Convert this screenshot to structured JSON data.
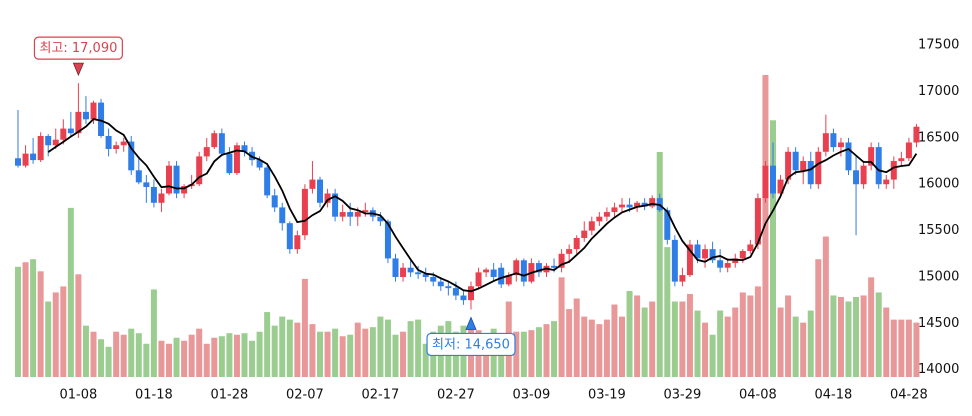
{
  "chart_data": {
    "type": "candlestick",
    "categories": [
      null,
      null,
      null,
      null,
      null,
      null,
      null,
      null,
      "01-08",
      null,
      null,
      null,
      null,
      null,
      null,
      null,
      null,
      null,
      "01-18",
      null,
      null,
      null,
      null,
      null,
      null,
      null,
      null,
      null,
      "01-28",
      null,
      null,
      null,
      null,
      null,
      null,
      null,
      null,
      null,
      "02-07",
      null,
      null,
      null,
      null,
      null,
      null,
      null,
      null,
      null,
      "02-17",
      null,
      null,
      null,
      null,
      null,
      null,
      null,
      null,
      null,
      "02-27",
      null,
      null,
      null,
      null,
      null,
      null,
      null,
      null,
      null,
      "03-09",
      null,
      null,
      null,
      null,
      null,
      null,
      null,
      null,
      null,
      "03-19",
      null,
      null,
      null,
      null,
      null,
      null,
      null,
      null,
      null,
      "03-29",
      null,
      null,
      null,
      null,
      null,
      null,
      null,
      null,
      null,
      "04-08",
      null,
      null,
      null,
      null,
      null,
      null,
      null,
      null,
      null,
      "04-18",
      null,
      null,
      null,
      null,
      null,
      null,
      null,
      null,
      null,
      "04-28",
      null
    ],
    "open": [
      16280,
      16200,
      16330,
      16260,
      16520,
      16420,
      16480,
      16600,
      16550,
      16780,
      16700,
      16880,
      16520,
      16380,
      16420,
      16460,
      16150,
      16020,
      15970,
      15800,
      15900,
      16200,
      15900,
      15980,
      16000,
      16300,
      16400,
      16550,
      16330,
      16120,
      16420,
      16350,
      16260,
      16180,
      15880,
      15750,
      15580,
      15300,
      15450,
      15950,
      16050,
      15800,
      15900,
      15650,
      15700,
      15650,
      15700,
      15720,
      15650,
      15600,
      15200,
      15000,
      15100,
      15050,
      15030,
      15000,
      14950,
      14900,
      14880,
      14800,
      14750,
      14900,
      15050,
      15080,
      15100,
      14920,
      15020,
      15180,
      14950,
      15150,
      15050,
      15120,
      15100,
      15250,
      15300,
      15420,
      15500,
      15600,
      15650,
      15700,
      15750,
      15780,
      15750,
      15800,
      15760,
      15850,
      15720,
      15400,
      14950,
      15020,
      15350,
      15200,
      15300,
      15180,
      15100,
      15150,
      15200,
      15280,
      15350,
      15850,
      16200,
      15900,
      16050,
      16350,
      16150,
      16250,
      16000,
      16350,
      16550,
      16400,
      16450,
      16150,
      16000,
      16200,
      16400,
      16000,
      16050,
      16250,
      16280,
      16450
    ],
    "high": [
      16800,
      16420,
      16500,
      16560,
      16540,
      16600,
      16700,
      16780,
      17090,
      16950,
      16900,
      16920,
      16600,
      16460,
      16500,
      16520,
      16300,
      16100,
      16050,
      15950,
      16250,
      16250,
      16000,
      16100,
      16350,
      16500,
      16580,
      16600,
      16400,
      16450,
      16460,
      16400,
      16300,
      16200,
      15950,
      15800,
      15600,
      15500,
      16000,
      16250,
      16080,
      15950,
      15950,
      15780,
      15800,
      15750,
      15800,
      15750,
      15700,
      15620,
      15250,
      15150,
      15200,
      15120,
      15100,
      15050,
      15000,
      14950,
      14950,
      14850,
      14950,
      15100,
      15100,
      15150,
      15150,
      15050,
      15200,
      15200,
      15200,
      15180,
      15150,
      15200,
      15300,
      15350,
      15450,
      15600,
      15650,
      15700,
      15750,
      15800,
      15850,
      15850,
      15820,
      15850,
      15880,
      15900,
      15750,
      15450,
      15100,
      15400,
      15400,
      15350,
      15380,
      15300,
      15200,
      15250,
      15300,
      15400,
      15900,
      16250,
      16450,
      16100,
      16400,
      16400,
      16300,
      16350,
      16400,
      16750,
      16600,
      16500,
      16500,
      16300,
      16250,
      16450,
      16450,
      16100,
      16300,
      16350,
      16500,
      16650
    ],
    "low": [
      16180,
      16180,
      16220,
      16240,
      16300,
      16380,
      16430,
      16520,
      16500,
      16650,
      16650,
      16500,
      16300,
      16330,
      16350,
      16100,
      16000,
      15800,
      15750,
      15700,
      15880,
      15850,
      15850,
      15950,
      15980,
      16250,
      16380,
      16300,
      16100,
      16100,
      16300,
      16200,
      16150,
      15850,
      15700,
      15500,
      15250,
      15250,
      15400,
      15900,
      15750,
      15750,
      15600,
      15600,
      15550,
      15550,
      15650,
      15600,
      15550,
      15150,
      14950,
      14950,
      15000,
      14980,
      14950,
      14900,
      14850,
      14800,
      14750,
      14700,
      14650,
      14880,
      15000,
      14950,
      14880,
      14900,
      14950,
      14900,
      14930,
      15000,
      15000,
      15050,
      15050,
      15150,
      15250,
      15380,
      15450,
      15550,
      15600,
      15650,
      15700,
      15700,
      15700,
      15720,
      15740,
      15700,
      15350,
      14900,
      14900,
      15000,
      15150,
      15100,
      15150,
      15050,
      15050,
      15100,
      15150,
      15250,
      15300,
      15800,
      15850,
      15850,
      16000,
      16100,
      16000,
      15950,
      15950,
      16300,
      16350,
      16300,
      16100,
      15450,
      15950,
      16150,
      15950,
      15950,
      15950,
      16200,
      16250,
      16400
    ],
    "close": [
      16200,
      16330,
      16260,
      16520,
      16420,
      16480,
      16600,
      16550,
      16780,
      16700,
      16880,
      16520,
      16380,
      16420,
      16460,
      16150,
      16020,
      15970,
      15800,
      15900,
      16200,
      15900,
      15980,
      16000,
      16300,
      16400,
      16550,
      16330,
      16120,
      16420,
      16350,
      16260,
      16180,
      15880,
      15750,
      15580,
      15300,
      15450,
      15950,
      16050,
      15800,
      15900,
      15650,
      15700,
      15650,
      15700,
      15720,
      15650,
      15600,
      15200,
      15000,
      15100,
      15050,
      15030,
      15000,
      14950,
      14900,
      14880,
      14800,
      14750,
      14900,
      15050,
      15080,
      15000,
      14920,
      15020,
      15180,
      14950,
      15150,
      15050,
      15120,
      15100,
      15250,
      15300,
      15420,
      15500,
      15600,
      15650,
      15700,
      15750,
      15780,
      15750,
      15800,
      15760,
      15850,
      15720,
      15400,
      14950,
      15020,
      15350,
      15200,
      15300,
      15180,
      15100,
      15150,
      15200,
      15280,
      15350,
      15850,
      16200,
      15900,
      16050,
      16350,
      16150,
      16250,
      16000,
      16350,
      16550,
      16400,
      16450,
      16150,
      16000,
      16200,
      16400,
      16000,
      16050,
      16250,
      16280,
      16450,
      16620
    ],
    "volume": [
      365,
      380,
      390,
      350,
      250,
      280,
      300,
      560,
      340,
      170,
      150,
      125,
      100,
      150,
      140,
      160,
      145,
      110,
      290,
      120,
      110,
      130,
      120,
      140,
      160,
      110,
      130,
      135,
      145,
      140,
      145,
      120,
      150,
      215,
      170,
      200,
      190,
      180,
      325,
      175,
      150,
      150,
      160,
      135,
      140,
      180,
      160,
      165,
      200,
      190,
      140,
      150,
      185,
      190,
      110,
      150,
      170,
      185,
      150,
      170,
      160,
      155,
      135,
      160,
      140,
      250,
      150,
      150,
      155,
      165,
      175,
      185,
      330,
      225,
      260,
      200,
      190,
      175,
      190,
      240,
      200,
      285,
      270,
      230,
      250,
      745,
      430,
      250,
      250,
      275,
      220,
      180,
      140,
      220,
      200,
      230,
      280,
      270,
      300,
      1000,
      850,
      230,
      270,
      200,
      180,
      220,
      390,
      465,
      270,
      265,
      250,
      265,
      270,
      330,
      280,
      230,
      190,
      190,
      190,
      180
    ],
    "ma": [
      null,
      null,
      null,
      null,
      16346,
      16402,
      16456,
      16514,
      16566,
      16622,
      16702,
      16686,
      16652,
      16580,
      16532,
      16386,
      16286,
      16204,
      16080,
      15968,
      15978,
      15954,
      15956,
      15996,
      16076,
      16116,
      16246,
      16316,
      16340,
      16364,
      16354,
      16296,
      16266,
      16218,
      16084,
      15930,
      15738,
      15592,
      15606,
      15666,
      15710,
      15830,
      15870,
      15820,
      15740,
      15720,
      15684,
      15684,
      15664,
      15574,
      15434,
      15310,
      15190,
      15076,
      15036,
      15026,
      14986,
      14952,
      14906,
      14856,
      14846,
      14876,
      14916,
      14956,
      14990,
      15014,
      15040,
      15014,
      15044,
      15070,
      15090,
      15074,
      15134,
      15164,
      15238,
      15314,
      15414,
      15494,
      15574,
      15640,
      15696,
      15726,
      15756,
      15768,
      15788,
      15776,
      15706,
      15536,
      15388,
      15288,
      15184,
      15164,
      15210,
      15226,
      15186,
      15186,
      15182,
      15216,
      15366,
      15576,
      15716,
      15870,
      16070,
      16130,
      16140,
      16160,
      16220,
      16260,
      16310,
      16350,
      16380,
      16310,
      16240,
      16240,
      16150,
      16130,
      16180,
      16196,
      16206,
      16330
    ],
    "ylim": [
      13900,
      17900
    ],
    "yticks": [
      14000,
      14500,
      15000,
      15500,
      16000,
      16500,
      17000,
      17500
    ],
    "volume_lim": [
      0,
      1000
    ],
    "colors": {
      "up": "#e8404f",
      "down": "#2f7de6",
      "volume_up": "#e89898",
      "volume_down": "#9acd8f",
      "ma": "#000000"
    },
    "annotations": [
      {
        "text": "최고: 17,090",
        "value": 17090,
        "color": "#d9434f"
      },
      {
        "text": "최저: 14,650",
        "value": 14650,
        "color": "#2f7de6"
      }
    ]
  }
}
